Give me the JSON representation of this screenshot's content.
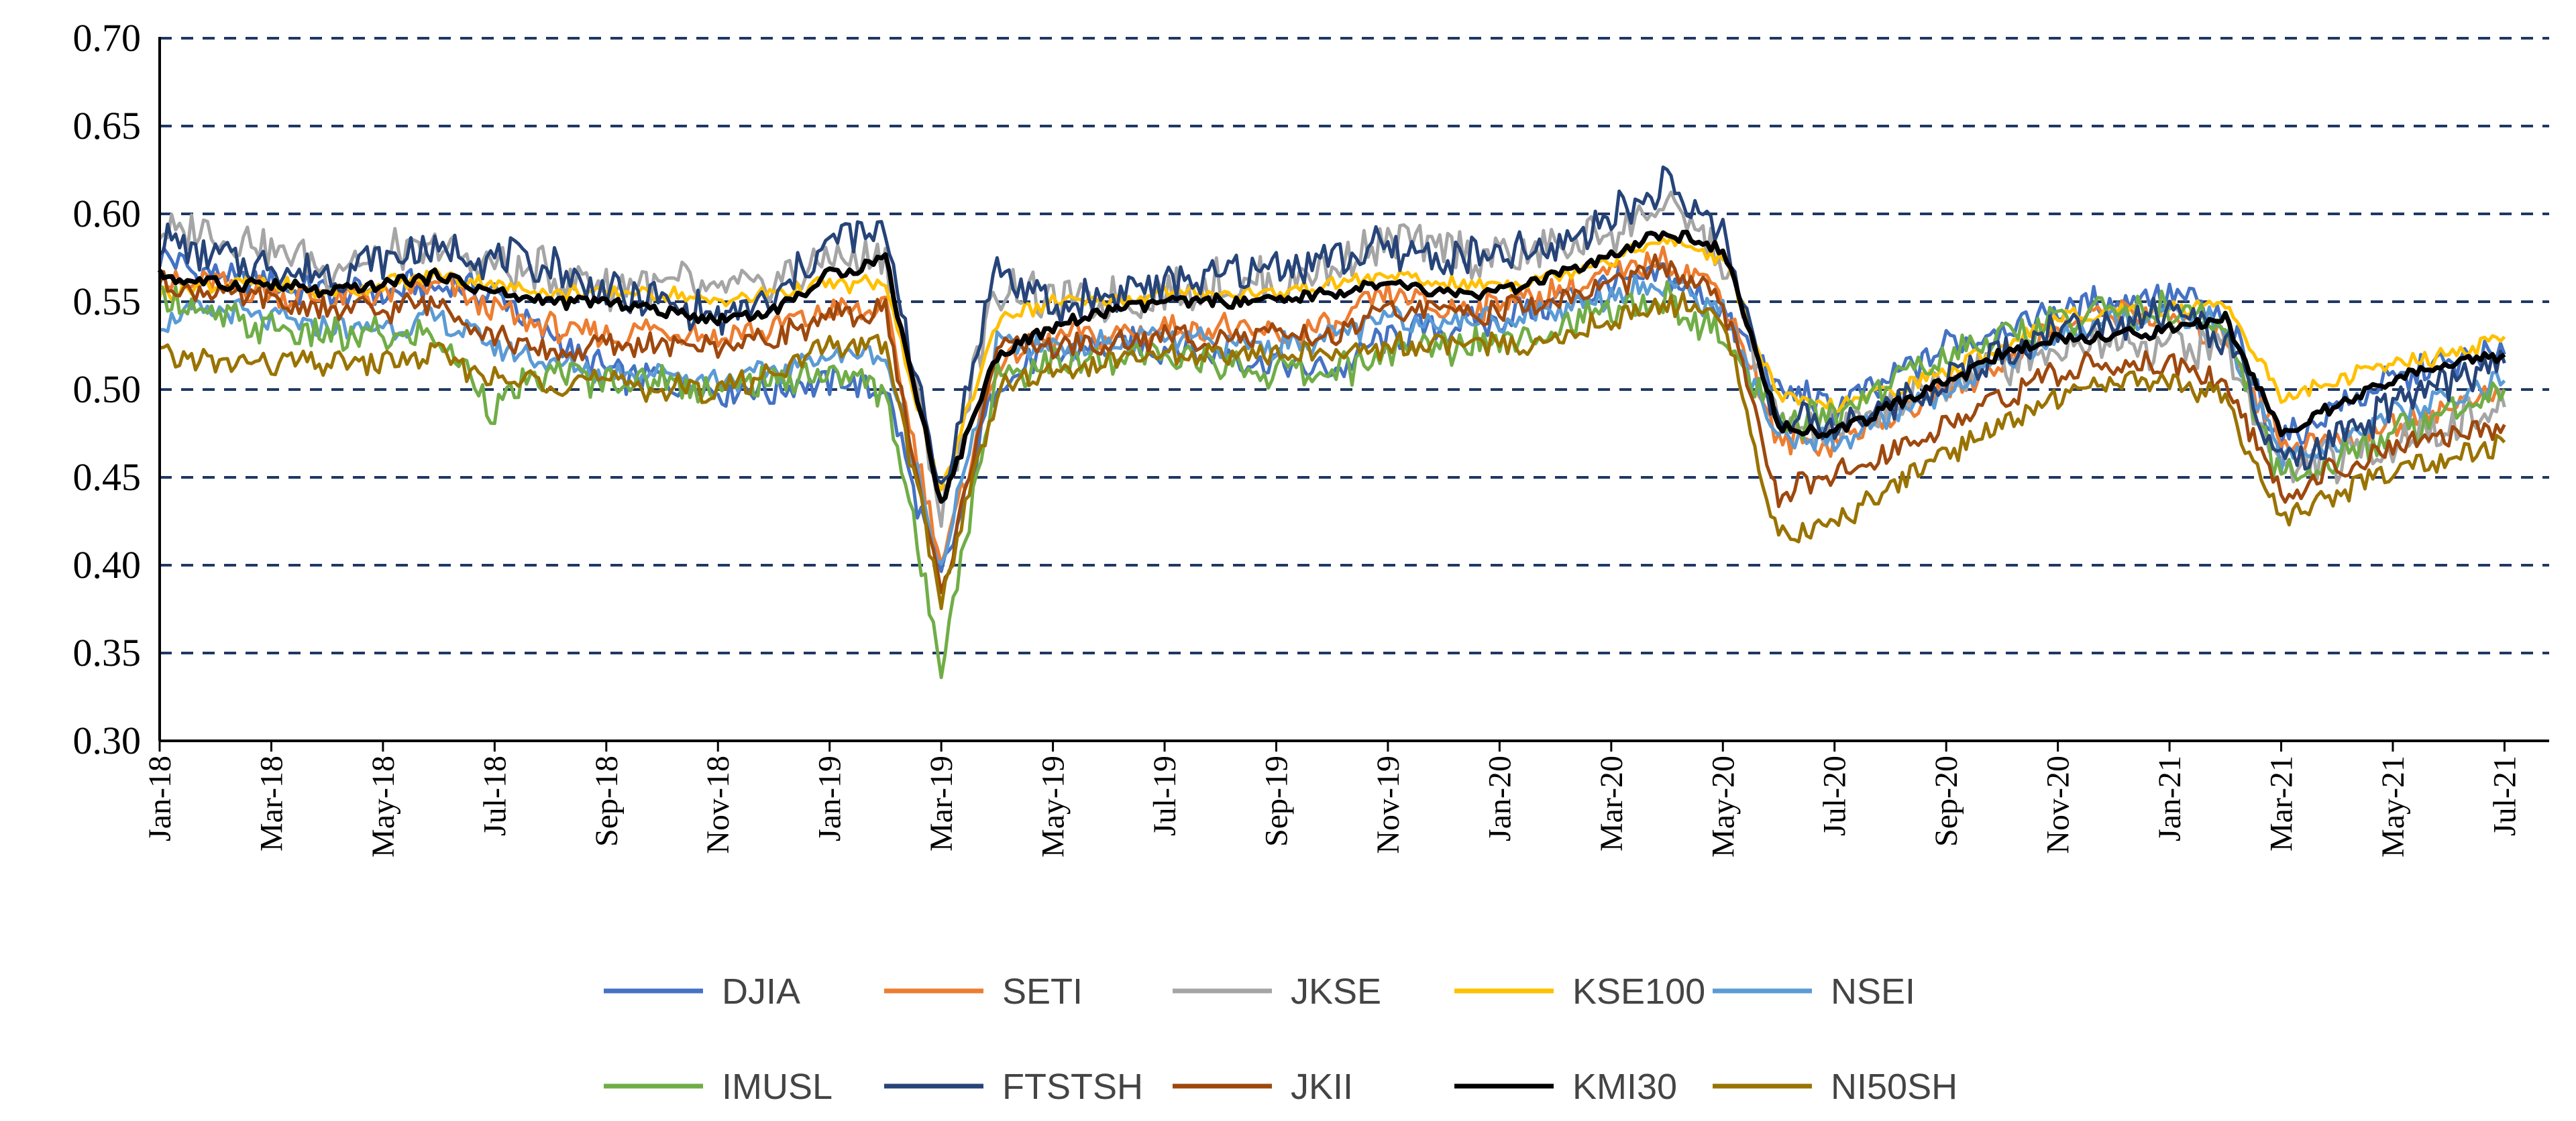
{
  "chart_data": {
    "type": "line",
    "title": "",
    "xlabel": "",
    "ylabel": "",
    "ylim": [
      0.3,
      0.7
    ],
    "yticks": [
      "0.30",
      "0.35",
      "0.40",
      "0.45",
      "0.50",
      "0.55",
      "0.60",
      "0.65",
      "0.70"
    ],
    "grid": "horizontal dashed",
    "legend_position": "bottom",
    "x_tick_labels": [
      "Jan-18",
      "Mar-18",
      "May-18",
      "Jul-18",
      "Sep-18",
      "Nov-18",
      "Jan-19",
      "Mar-19",
      "May-19",
      "Jul-19",
      "Sep-19",
      "Nov-19",
      "Jan-20",
      "Mar-20",
      "May-20",
      "Jul-20",
      "Sep-20",
      "Nov-20",
      "Jan-21",
      "Mar-21",
      "May-21",
      "Jul-21"
    ],
    "x": [
      "Jan-18",
      "Feb-18",
      "Mar-18",
      "Apr-18",
      "May-18",
      "Jun-18",
      "Jul-18",
      "Aug-18",
      "Sep-18",
      "Oct-18",
      "Nov-18",
      "Dec-18",
      "Jan-19",
      "Feb-19",
      "Mar-19",
      "Apr-19",
      "May-19",
      "Jun-19",
      "Jul-19",
      "Aug-19",
      "Sep-19",
      "Oct-19",
      "Nov-19",
      "Dec-19",
      "Jan-20",
      "Feb-20",
      "Mar-20",
      "Apr-20",
      "May-20",
      "Jun-20",
      "Jul-20",
      "Aug-20",
      "Sep-20",
      "Oct-20",
      "Nov-20",
      "Dec-20",
      "Jan-21",
      "Feb-21",
      "Mar-21",
      "Apr-21",
      "May-21",
      "Jun-21",
      "Jul-21"
    ],
    "series": [
      {
        "name": "DJIA",
        "color": "#4472C4",
        "values": [
          0.575,
          0.565,
          0.56,
          0.555,
          0.555,
          0.56,
          0.555,
          0.53,
          0.51,
          0.505,
          0.5,
          0.5,
          0.505,
          0.5,
          0.39,
          0.505,
          0.52,
          0.525,
          0.525,
          0.52,
          0.515,
          0.51,
          0.53,
          0.535,
          0.54,
          0.55,
          0.56,
          0.565,
          0.545,
          0.5,
          0.49,
          0.505,
          0.525,
          0.535,
          0.545,
          0.55,
          0.555,
          0.54,
          0.47,
          0.49,
          0.505,
          0.515,
          0.52
        ]
      },
      {
        "name": "SETI",
        "color": "#ED7D31",
        "values": [
          0.56,
          0.56,
          0.555,
          0.55,
          0.555,
          0.56,
          0.545,
          0.535,
          0.53,
          0.535,
          0.53,
          0.535,
          0.545,
          0.545,
          0.4,
          0.515,
          0.53,
          0.53,
          0.535,
          0.535,
          0.53,
          0.535,
          0.555,
          0.545,
          0.55,
          0.555,
          0.565,
          0.575,
          0.555,
          0.47,
          0.47,
          0.485,
          0.5,
          0.515,
          0.535,
          0.545,
          0.54,
          0.53,
          0.47,
          0.47,
          0.48,
          0.49,
          0.5
        ]
      },
      {
        "name": "JKSE",
        "color": "#A5A5A5",
        "values": [
          0.59,
          0.59,
          0.58,
          0.57,
          0.575,
          0.58,
          0.57,
          0.565,
          0.56,
          0.56,
          0.555,
          0.56,
          0.575,
          0.575,
          0.43,
          0.56,
          0.55,
          0.55,
          0.555,
          0.56,
          0.56,
          0.57,
          0.585,
          0.58,
          0.575,
          0.58,
          0.59,
          0.605,
          0.575,
          0.48,
          0.475,
          0.49,
          0.505,
          0.515,
          0.525,
          0.53,
          0.525,
          0.525,
          0.455,
          0.46,
          0.47,
          0.48,
          0.49
        ]
      },
      {
        "name": "KSE100",
        "color": "#FFC000",
        "values": [
          0.555,
          0.56,
          0.56,
          0.555,
          0.56,
          0.565,
          0.56,
          0.555,
          0.555,
          0.555,
          0.55,
          0.555,
          0.56,
          0.56,
          0.44,
          0.54,
          0.55,
          0.55,
          0.555,
          0.555,
          0.555,
          0.56,
          0.565,
          0.56,
          0.56,
          0.565,
          0.575,
          0.585,
          0.575,
          0.495,
          0.49,
          0.5,
          0.51,
          0.525,
          0.54,
          0.545,
          0.545,
          0.55,
          0.495,
          0.505,
          0.515,
          0.52,
          0.53
        ]
      },
      {
        "name": "NSEI",
        "color": "#5B9BD5",
        "values": [
          0.54,
          0.545,
          0.54,
          0.535,
          0.535,
          0.54,
          0.525,
          0.515,
          0.51,
          0.51,
          0.505,
          0.51,
          0.52,
          0.52,
          0.4,
          0.525,
          0.525,
          0.525,
          0.53,
          0.525,
          0.525,
          0.53,
          0.54,
          0.54,
          0.54,
          0.545,
          0.555,
          0.56,
          0.545,
          0.47,
          0.47,
          0.485,
          0.5,
          0.515,
          0.53,
          0.54,
          0.545,
          0.535,
          0.46,
          0.47,
          0.485,
          0.495,
          0.505
        ]
      },
      {
        "name": "IMUSL",
        "color": "#70AD47",
        "values": [
          0.555,
          0.54,
          0.535,
          0.53,
          0.53,
          0.53,
          0.49,
          0.51,
          0.505,
          0.505,
          0.5,
          0.505,
          0.51,
          0.5,
          0.345,
          0.51,
          0.515,
          0.515,
          0.52,
          0.515,
          0.51,
          0.51,
          0.52,
          0.525,
          0.53,
          0.535,
          0.545,
          0.55,
          0.53,
          0.48,
          0.485,
          0.505,
          0.52,
          0.53,
          0.54,
          0.545,
          0.545,
          0.535,
          0.45,
          0.46,
          0.475,
          0.49,
          0.5
        ]
      },
      {
        "name": "FTSTSH",
        "color": "#264478",
        "values": [
          0.585,
          0.575,
          0.57,
          0.565,
          0.575,
          0.58,
          0.575,
          0.57,
          0.555,
          0.55,
          0.54,
          0.55,
          0.585,
          0.59,
          0.44,
          0.57,
          0.545,
          0.555,
          0.56,
          0.565,
          0.57,
          0.575,
          0.58,
          0.575,
          0.575,
          0.58,
          0.6,
          0.615,
          0.59,
          0.48,
          0.48,
          0.49,
          0.505,
          0.52,
          0.535,
          0.54,
          0.545,
          0.53,
          0.455,
          0.47,
          0.49,
          0.505,
          0.515
        ]
      },
      {
        "name": "JKII",
        "color": "#9E480E",
        "values": [
          0.56,
          0.555,
          0.55,
          0.545,
          0.545,
          0.55,
          0.53,
          0.52,
          0.525,
          0.525,
          0.525,
          0.53,
          0.54,
          0.545,
          0.38,
          0.525,
          0.525,
          0.525,
          0.53,
          0.53,
          0.53,
          0.53,
          0.545,
          0.545,
          0.545,
          0.55,
          0.56,
          0.57,
          0.55,
          0.44,
          0.45,
          0.465,
          0.48,
          0.495,
          0.51,
          0.515,
          0.515,
          0.505,
          0.44,
          0.455,
          0.465,
          0.475,
          0.48
        ]
      },
      {
        "name": "KMI30",
        "color": "#000000",
        "values": [
          0.565,
          0.56,
          0.56,
          0.555,
          0.56,
          0.565,
          0.555,
          0.55,
          0.55,
          0.545,
          0.54,
          0.545,
          0.565,
          0.575,
          0.435,
          0.52,
          0.535,
          0.545,
          0.55,
          0.55,
          0.55,
          0.555,
          0.56,
          0.555,
          0.555,
          0.565,
          0.575,
          0.59,
          0.58,
          0.48,
          0.475,
          0.49,
          0.505,
          0.52,
          0.53,
          0.53,
          0.535,
          0.54,
          0.475,
          0.49,
          0.505,
          0.515,
          0.52
        ]
      },
      {
        "name": "NI50SH",
        "color": "#997300",
        "values": [
          0.52,
          0.515,
          0.515,
          0.515,
          0.515,
          0.52,
          0.505,
          0.505,
          0.505,
          0.5,
          0.5,
          0.51,
          0.525,
          0.525,
          0.38,
          0.5,
          0.51,
          0.515,
          0.52,
          0.52,
          0.52,
          0.52,
          0.525,
          0.525,
          0.525,
          0.53,
          0.54,
          0.55,
          0.54,
          0.415,
          0.425,
          0.445,
          0.465,
          0.48,
          0.495,
          0.505,
          0.505,
          0.495,
          0.425,
          0.44,
          0.455,
          0.46,
          0.47
        ]
      }
    ]
  }
}
